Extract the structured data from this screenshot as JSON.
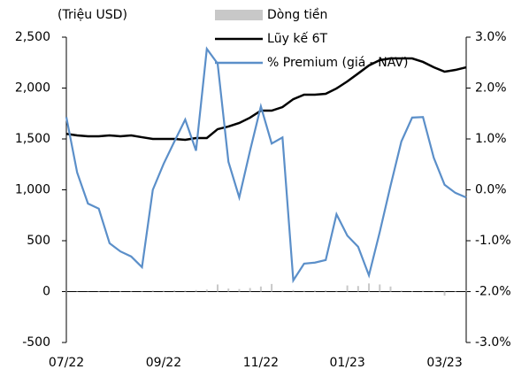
{
  "chart_data": {
    "type": "combo",
    "y_label": "(Triệu USD)",
    "categories": [
      "07/22",
      null,
      null,
      null,
      null,
      null,
      null,
      null,
      null,
      "09/22",
      null,
      null,
      null,
      null,
      null,
      null,
      null,
      null,
      "11/22",
      null,
      null,
      null,
      null,
      null,
      null,
      null,
      "01/23",
      null,
      null,
      null,
      null,
      null,
      null,
      null,
      null,
      "03/23",
      null,
      null
    ],
    "series": [
      {
        "name": "Dòng tiền",
        "type": "bar",
        "color": "#c8c8c8",
        "values": [
          5,
          3,
          2,
          4,
          3,
          5,
          4,
          6,
          10,
          8,
          12,
          10,
          15,
          20,
          70,
          30,
          25,
          35,
          50,
          75,
          10,
          15,
          8,
          10,
          12,
          8,
          60,
          55,
          80,
          70,
          50,
          10,
          5,
          8,
          6,
          -40,
          5,
          10
        ]
      },
      {
        "name": "Lũy kế 6T",
        "type": "line",
        "color": "#000000",
        "values": [
          1550,
          1535,
          1526,
          1526,
          1535,
          1526,
          1535,
          1517,
          1500,
          1500,
          1500,
          1491,
          1509,
          1509,
          1596,
          1622,
          1657,
          1709,
          1778,
          1778,
          1813,
          1891,
          1935,
          1935,
          1943,
          1996,
          2065,
          2143,
          2222,
          2274,
          2291,
          2291,
          2291,
          2257,
          2204,
          2161,
          2178,
          2204
        ]
      },
      {
        "name": "% Premium (giá - NAV)",
        "type": "line",
        "axis": "y2",
        "color": "#5b8fc9",
        "values": [
          1.43,
          0.34,
          -0.27,
          -0.37,
          -1.05,
          -1.21,
          -1.31,
          -1.52,
          0,
          0.51,
          0.95,
          1.38,
          0.77,
          2.77,
          2.48,
          0.55,
          -0.15,
          0.77,
          1.64,
          0.91,
          1.03,
          -1.78,
          -1.45,
          -1.43,
          -1.38,
          -0.48,
          -0.9,
          -1.12,
          -1.68,
          -0.83,
          0.08,
          0.95,
          1.42,
          1.43,
          0.63,
          0.1,
          -0.06,
          -0.15
        ]
      }
    ],
    "ylim": [
      -500,
      2500
    ],
    "yticks": [
      -500,
      0,
      500,
      {
        "value": 1000,
        "label": "1,000"
      },
      {
        "value": 1500,
        "label": "1,500"
      },
      {
        "value": 2000,
        "label": "2,000"
      },
      {
        "value": 2500,
        "label": "2,500"
      }
    ],
    "y2lim": [
      -3,
      3
    ],
    "y2ticks": [
      {
        "value": -3,
        "label": "-3.0%"
      },
      {
        "value": -2,
        "label": "-2.0%"
      },
      {
        "value": -1,
        "label": "-1.0%"
      },
      {
        "value": 0,
        "label": "0.0%"
      },
      {
        "value": 1,
        "label": "1.0%"
      },
      {
        "value": 2,
        "label": "2.0%"
      },
      {
        "value": 3,
        "label": "3.0%"
      }
    ],
    "grid": false
  }
}
